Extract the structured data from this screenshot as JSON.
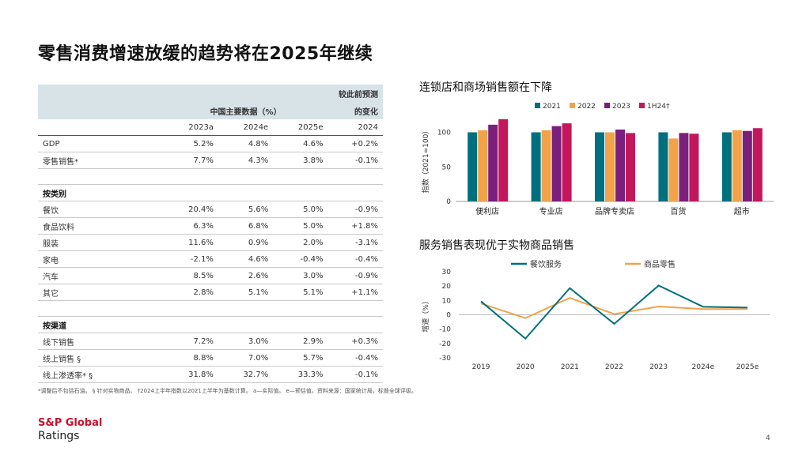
{
  "title": "零售消费增速放缓的趋势将在2025年继续",
  "table": {
    "header_group": "中国主要数据（%）",
    "header_change": [
      "较此前预测",
      "的变化"
    ],
    "columns": [
      "2023a",
      "2024e",
      "2025e",
      "2024"
    ],
    "rows": [
      {
        "type": "data",
        "label": "GDP",
        "values": [
          "5.2%",
          "4.8%",
          "4.6%",
          "+0.2%"
        ]
      },
      {
        "type": "data",
        "label": "零售销售*",
        "values": [
          "7.7%",
          "4.3%",
          "3.8%",
          "-0.1%"
        ]
      },
      {
        "type": "blank",
        "label": "",
        "values": [
          "",
          "",
          "",
          ""
        ]
      },
      {
        "type": "section",
        "label": "按类别",
        "values": [
          "",
          "",
          "",
          ""
        ]
      },
      {
        "type": "data",
        "label": "餐饮",
        "values": [
          "20.4%",
          "5.6%",
          "5.0%",
          "-0.9%"
        ]
      },
      {
        "type": "data",
        "label": "食品饮料",
        "values": [
          "6.3%",
          "6.8%",
          "5.0%",
          "+1.8%"
        ]
      },
      {
        "type": "data",
        "label": "服装",
        "values": [
          "11.6%",
          "0.9%",
          "2.0%",
          "-3.1%"
        ]
      },
      {
        "type": "data",
        "label": "家电",
        "values": [
          "-2.1%",
          "4.6%",
          "-0.4%",
          "-0.4%"
        ]
      },
      {
        "type": "data",
        "label": "汽车",
        "values": [
          "8.5%",
          "2.6%",
          "3.0%",
          "-0.9%"
        ]
      },
      {
        "type": "data",
        "label": "其它",
        "values": [
          "2.8%",
          "5.1%",
          "5.1%",
          "+1.1%"
        ]
      },
      {
        "type": "blank",
        "label": "",
        "values": [
          "",
          "",
          "",
          ""
        ]
      },
      {
        "type": "section",
        "label": "按渠道",
        "values": [
          "",
          "",
          "",
          ""
        ]
      },
      {
        "type": "data",
        "label": "线下销售",
        "values": [
          "7.2%",
          "3.0%",
          "2.9%",
          "+0.3%"
        ]
      },
      {
        "type": "data",
        "label": "线上销售 §",
        "values": [
          "8.8%",
          "7.0%",
          "5.7%",
          "-0.4%"
        ]
      },
      {
        "type": "data",
        "label": "线上渗透率* §",
        "values": [
          "31.8%",
          "32.7%",
          "33.3%",
          "-0.1%"
        ]
      }
    ]
  },
  "footnote": "*调整后不包括石油。 § 针对实物商品。 †2024上半年指数以2021上半年为基数计算。 a—实际值。 e—预估值。资料来源：国家统计局，标普全球评级。",
  "brand": {
    "line1": "S&P Global",
    "line2": "Ratings"
  },
  "page_number": "4",
  "colors": {
    "teal": "#006f7e",
    "orange": "#f2a34a",
    "purple": "#7b1f7c",
    "crimson": "#c2185b"
  },
  "chart_data": [
    {
      "type": "bar",
      "title": "连锁店和商场销售额在下降",
      "ylabel": "指数（2021=100）",
      "ylim": [
        0,
        120
      ],
      "yticks": [
        0,
        50,
        100
      ],
      "categories": [
        "便利店",
        "专业店",
        "品牌专卖店",
        "百货",
        "超市"
      ],
      "series": [
        {
          "name": "2021",
          "color": "#006f7e",
          "values": [
            100,
            100,
            100,
            100,
            100
          ]
        },
        {
          "name": "2022",
          "color": "#f2a34a",
          "values": [
            103,
            103,
            100,
            91,
            103
          ]
        },
        {
          "name": "2023",
          "color": "#7b1f7c",
          "values": [
            111,
            109,
            104,
            99,
            102
          ]
        },
        {
          "name": "1H24†",
          "color": "#c2185b",
          "values": [
            119,
            113,
            99,
            98,
            106
          ]
        }
      ]
    },
    {
      "type": "line",
      "title": "服务销售表现优于实物商品销售",
      "ylabel": "增速（%）",
      "ylim": [
        -30,
        30
      ],
      "yticks": [
        30,
        20,
        10,
        0,
        -10,
        -20,
        -30
      ],
      "categories": [
        "2019",
        "2020",
        "2021",
        "2022",
        "2023",
        "2024e",
        "2025e"
      ],
      "series": [
        {
          "name": "餐饮服务",
          "color": "#006f7e",
          "values": [
            9.4,
            -16.6,
            18.6,
            -6.3,
            20.4,
            5.6,
            5.0
          ]
        },
        {
          "name": "商品零售",
          "color": "#f2a34a",
          "values": [
            7.9,
            -2.3,
            11.8,
            0.5,
            5.8,
            4.0,
            4.0
          ]
        }
      ]
    }
  ]
}
